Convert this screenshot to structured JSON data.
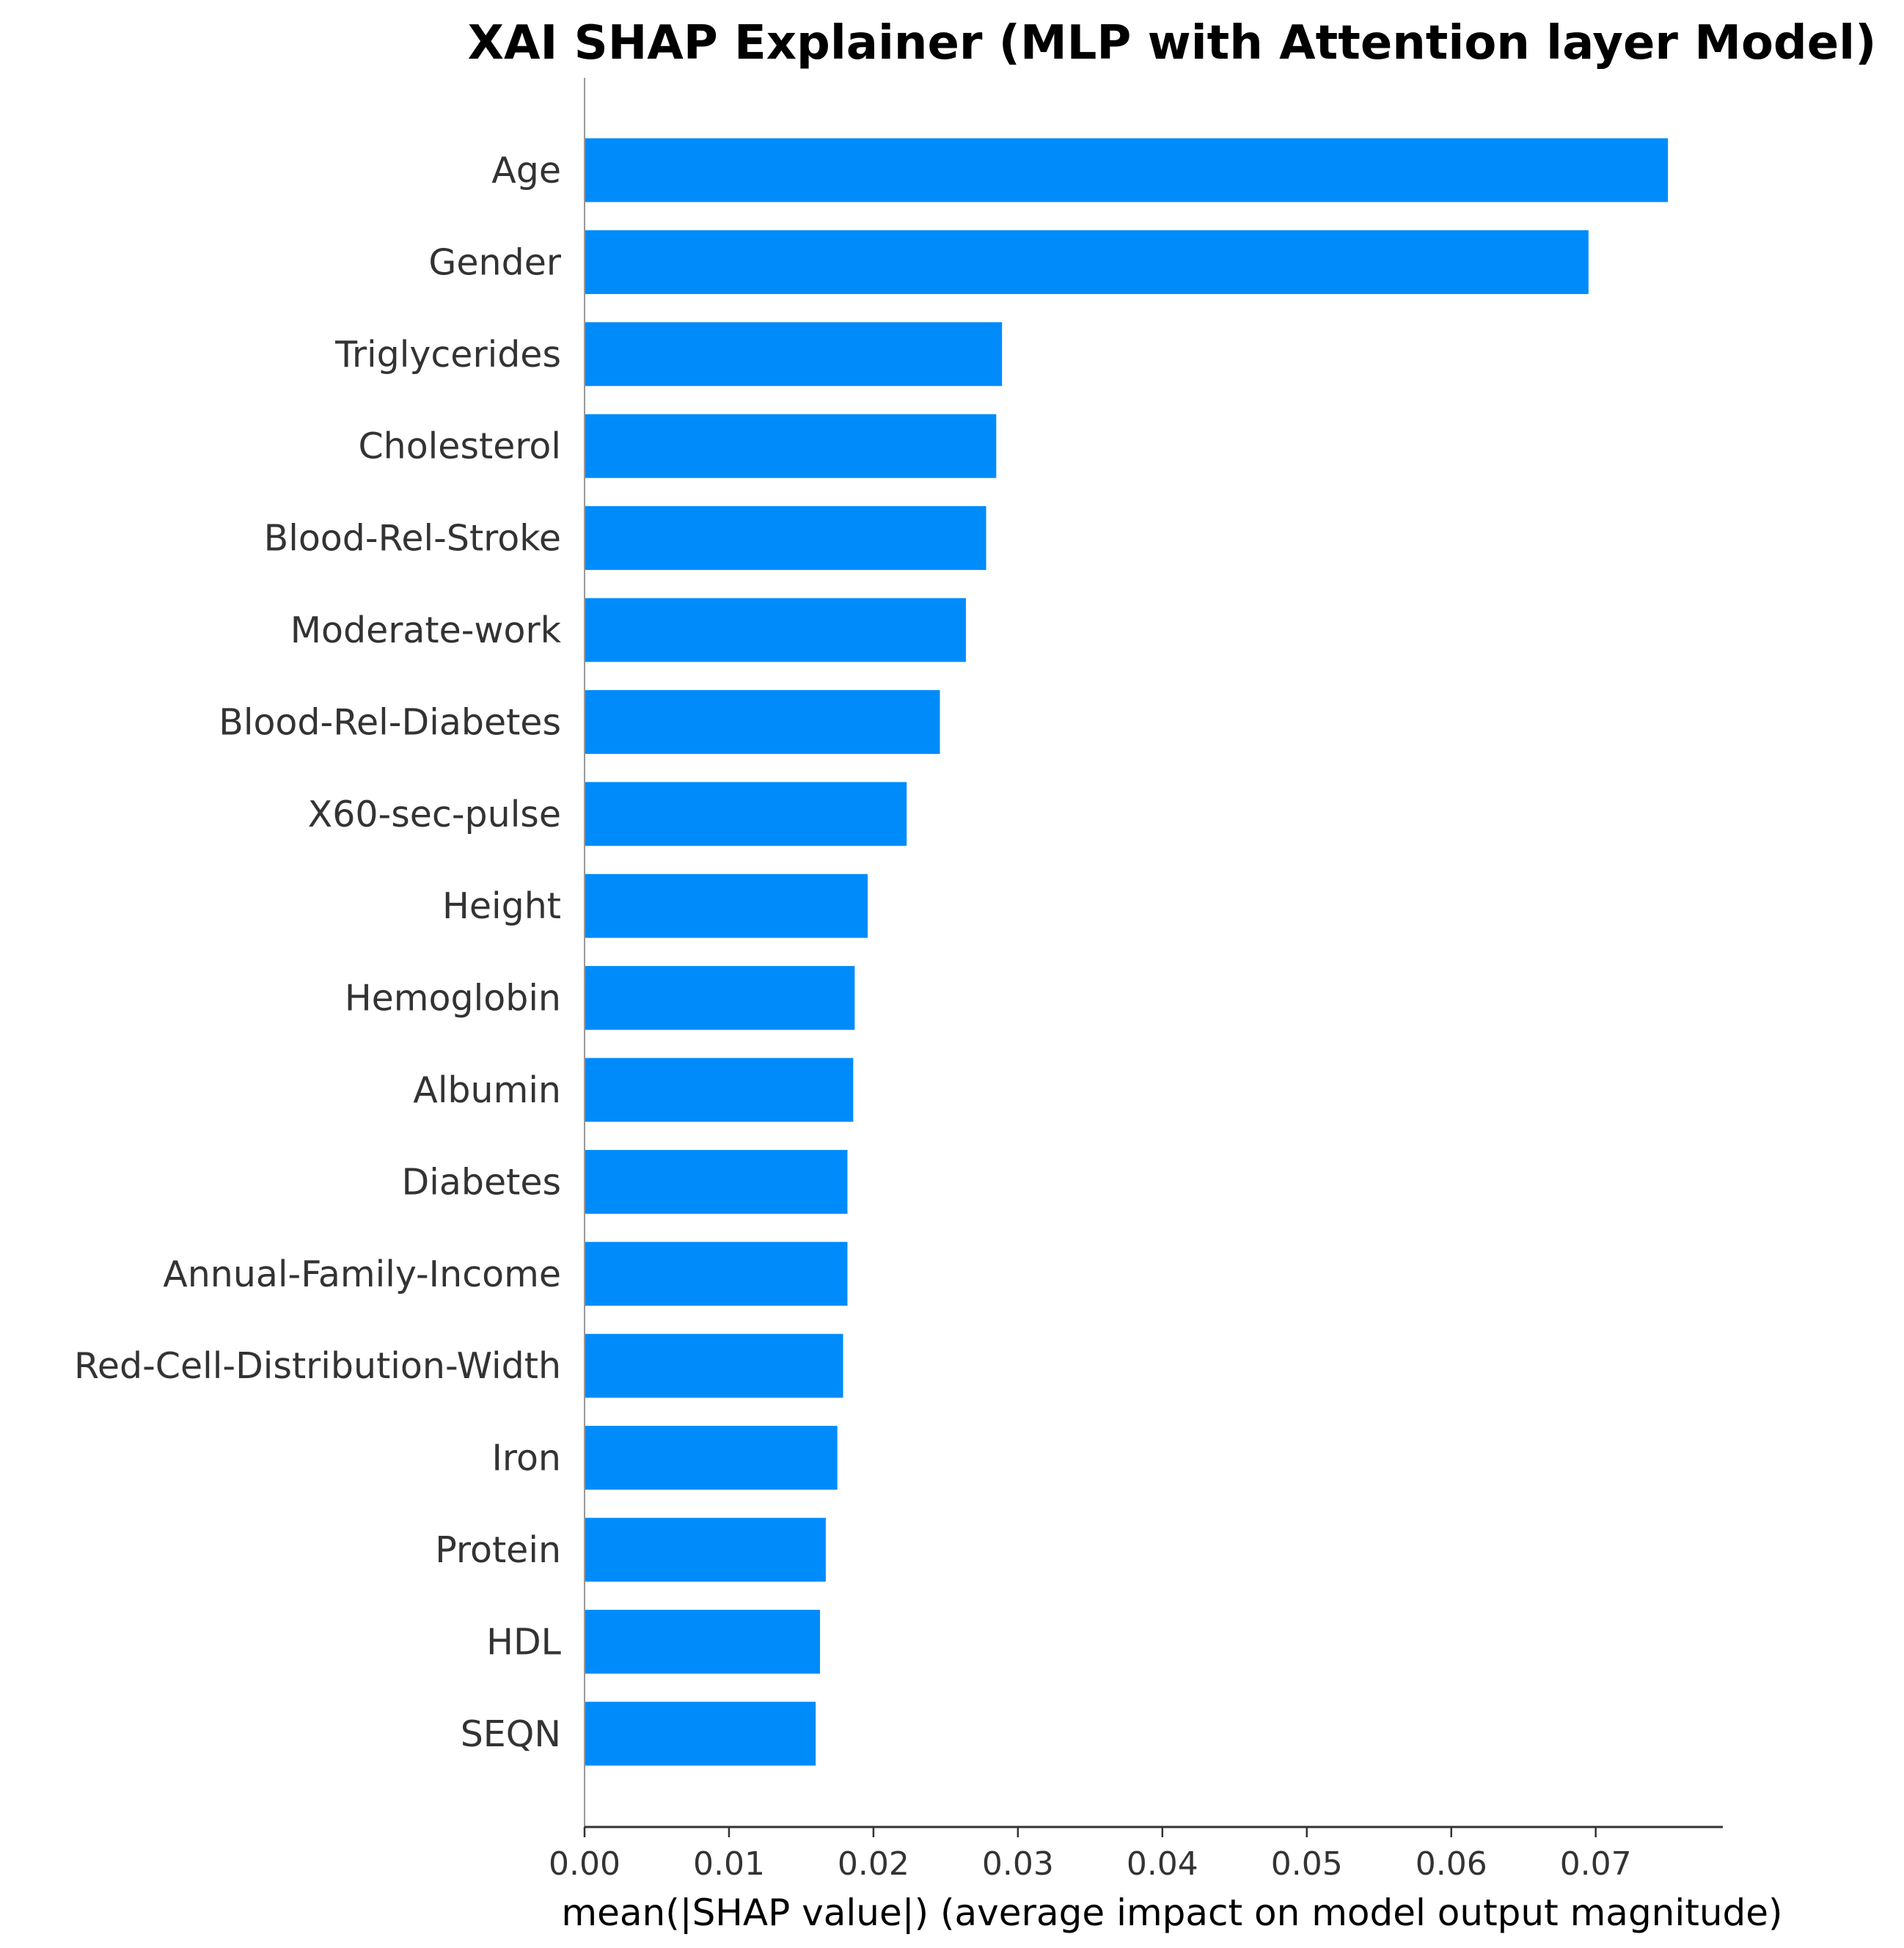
{
  "chart_data": {
    "type": "bar",
    "orientation": "horizontal",
    "title": "XAI SHAP Explainer (MLP with Attention layer Model)",
    "xlabel": "mean(|SHAP value|) (average impact on model output magnitude)",
    "ylabel": "",
    "categories": [
      "Age",
      "Gender",
      "Triglycerides",
      "Cholesterol",
      "Blood-Rel-Stroke",
      "Moderate-work",
      "Blood-Rel-Diabetes",
      "X60-sec-pulse",
      "Height",
      "Hemoglobin",
      "Albumin",
      "Diabetes",
      "Annual-Family-Income",
      "Red-Cell-Distribution-Width",
      "Iron",
      "Protein",
      "HDL",
      "SEQN"
    ],
    "values": [
      0.075,
      0.0695,
      0.0289,
      0.0285,
      0.0278,
      0.0264,
      0.0246,
      0.0223,
      0.0196,
      0.0187,
      0.0186,
      0.0182,
      0.0182,
      0.0179,
      0.0175,
      0.0167,
      0.0163,
      0.016
    ],
    "xlim": [
      0,
      0.0788
    ],
    "xticks": [
      0.0,
      0.01,
      0.02,
      0.03,
      0.04,
      0.05,
      0.06,
      0.07
    ],
    "xtick_labels": [
      "0.00",
      "0.01",
      "0.02",
      "0.03",
      "0.04",
      "0.05",
      "0.06",
      "0.07"
    ],
    "bar_color": "#008bfb",
    "grid": false,
    "legend": "none"
  }
}
